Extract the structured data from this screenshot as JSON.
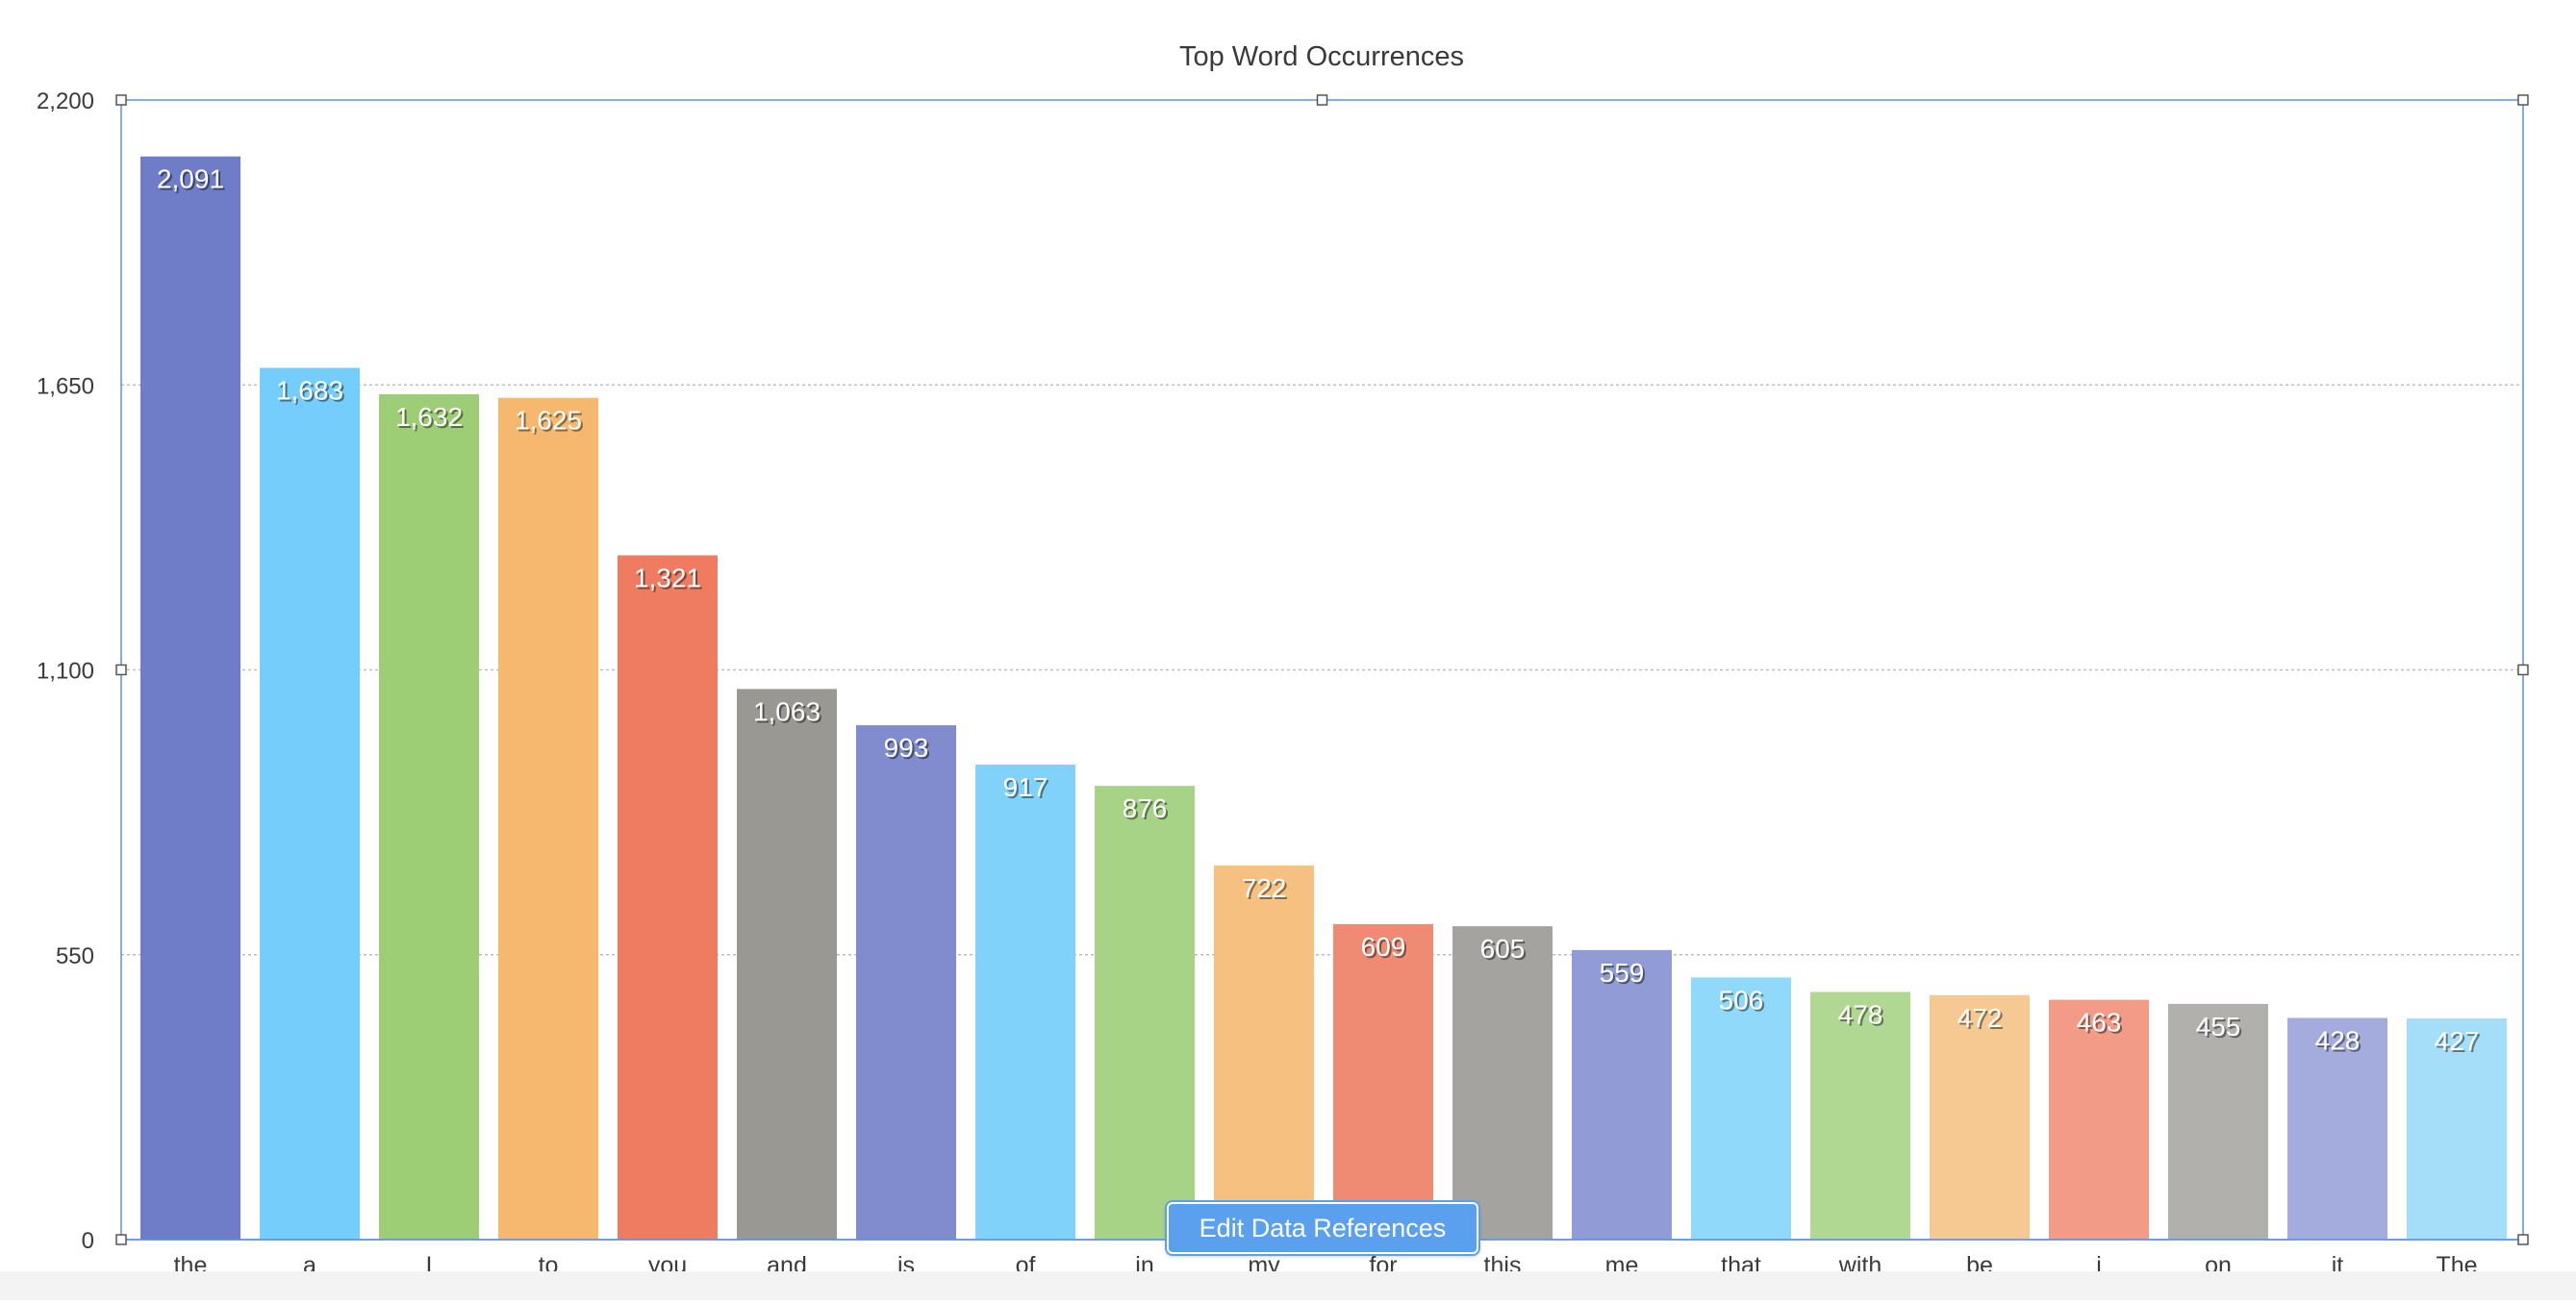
{
  "chart_data": {
    "type": "bar",
    "title": "Top Word Occurrences",
    "xlabel": "",
    "ylabel": "",
    "ylim": [
      0,
      2200
    ],
    "yticks": [
      0,
      550,
      1100,
      1650,
      2200
    ],
    "ytick_labels": [
      "0",
      "550",
      "1,100",
      "1,650",
      "2,200"
    ],
    "grid": true,
    "legend": "none",
    "categories": [
      "the",
      "a",
      "I",
      "to",
      "you",
      "and",
      "is",
      "of",
      "in",
      "my",
      "for",
      "this",
      "me",
      "that",
      "with",
      "be",
      "i",
      "on",
      "it",
      "The"
    ],
    "values": [
      2091,
      1683,
      1632,
      1625,
      1321,
      1063,
      993,
      917,
      876,
      722,
      609,
      605,
      559,
      506,
      478,
      472,
      463,
      455,
      428,
      427
    ],
    "value_labels": [
      "2,091",
      "1,683",
      "1,632",
      "1,625",
      "1,321",
      "1,063",
      "993",
      "917",
      "876",
      "722",
      "609",
      "605",
      "559",
      "506",
      "478",
      "472",
      "463",
      "455",
      "428",
      "427"
    ],
    "colors": [
      "#6f7cc8",
      "#74cdfa",
      "#9dcd74",
      "#f5b86e",
      "#ef7b61",
      "#9a9893",
      "#808cce",
      "#80d2fb",
      "#a6d385",
      "#f6c081",
      "#ef8a73",
      "#a5a39f",
      "#919bd6",
      "#91d9fa",
      "#b0d893",
      "#f6c992",
      "#f29c87",
      "#b2b0ad",
      "#a4abdd",
      "#a4def9"
    ]
  },
  "edit_button": {
    "label": "Edit Data References"
  }
}
